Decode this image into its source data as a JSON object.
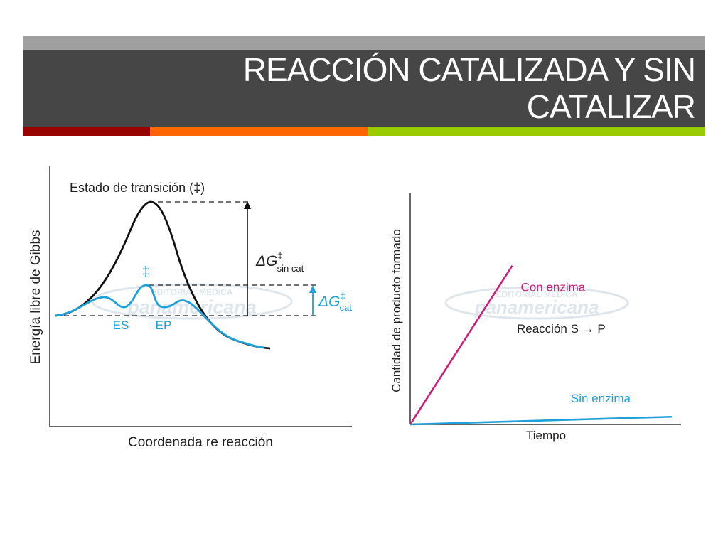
{
  "slide": {
    "title_line1": "REACCIÓN CATALIZADA Y SIN",
    "title_line2": "CATALIZAR",
    "accent_colors": {
      "title_band": "#464646",
      "title_band_top": "#a0a0a0",
      "strip_red": "#990000",
      "strip_orange": "#ff6600",
      "strip_green": "#99cc00"
    }
  },
  "energy_diagram": {
    "ylabel": "Energía libre de Gibbs",
    "xlabel": "Coordenada re reacción",
    "transition_label": "Estado de transición (‡)",
    "catalyzed_dagger": "‡",
    "es_label": "ES",
    "ep_label": "EP",
    "delta_g_uncat": {
      "symbol": "ΔG",
      "sup": "‡",
      "sub": "sin cat"
    },
    "delta_g_cat": {
      "symbol": "ΔG",
      "sup": "‡",
      "sub": "cat"
    },
    "watermark_line1": "EDITORIAL MEDICA",
    "watermark_line2": "panamericana",
    "colors": {
      "uncatalyzed": "#111111",
      "catalyzed": "#1ea0d8"
    }
  },
  "chart_data": {
    "type": "line",
    "title": "",
    "xlabel": "Tiempo",
    "ylabel": "Cantidad de producto formado",
    "annotation": "Reacción S → P",
    "xlim": [
      0,
      1
    ],
    "ylim": [
      0,
      1
    ],
    "series": [
      {
        "name": "Con enzima",
        "color": "#cc1f7a",
        "x": [
          0,
          0.39
        ],
        "y": [
          0,
          0.83
        ]
      },
      {
        "name": "Sin enzima",
        "color": "#1ea0d8",
        "x": [
          0,
          1.0
        ],
        "y": [
          0,
          0.04
        ]
      }
    ],
    "watermark_line1": "EDITORIAL MEDICA",
    "watermark_line2": "panamericana"
  }
}
